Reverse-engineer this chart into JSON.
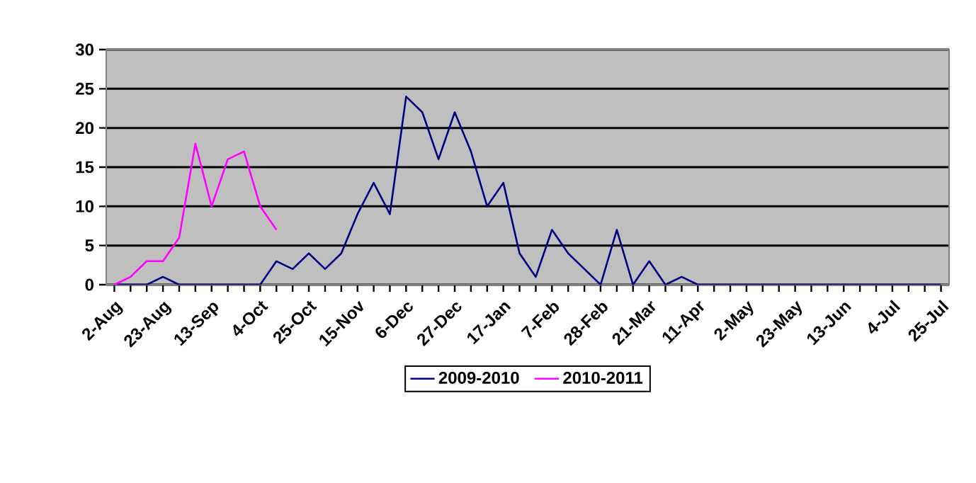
{
  "chart_data": {
    "type": "line",
    "categories": [
      "2-Aug",
      null,
      null,
      "23-Aug",
      null,
      null,
      "13-Sep",
      null,
      null,
      "4-Oct",
      null,
      null,
      "25-Oct",
      null,
      null,
      "15-Nov",
      null,
      null,
      "6-Dec",
      null,
      null,
      "27-Dec",
      null,
      null,
      "17-Jan",
      null,
      null,
      "7-Feb",
      null,
      null,
      "28-Feb",
      null,
      null,
      "21-Mar",
      null,
      null,
      "11-Apr",
      null,
      null,
      "2-May",
      null,
      null,
      "23-May",
      null,
      null,
      "13-Jun",
      null,
      null,
      "4-Jul",
      null,
      null,
      "25-Jul"
    ],
    "series": [
      {
        "name": "2009-2010",
        "color": "#000080",
        "values": [
          0,
          0,
          0,
          1,
          0,
          0,
          0,
          0,
          0,
          0,
          3,
          2,
          4,
          2,
          4,
          9,
          13,
          9,
          24,
          22,
          16,
          22,
          17,
          10,
          13,
          4,
          1,
          7,
          4,
          2,
          0,
          7,
          0,
          3,
          0,
          1,
          0,
          0,
          0,
          0,
          0,
          0,
          0,
          0,
          0,
          0,
          0,
          0,
          0,
          0,
          0,
          0
        ]
      },
      {
        "name": "2010-2011",
        "color": "#ff00ff",
        "values": [
          0,
          1,
          3,
          3,
          6,
          18,
          10,
          16,
          17,
          10,
          7,
          null,
          null,
          null,
          null,
          null,
          null,
          null,
          null,
          null,
          null,
          null,
          null,
          null,
          null,
          null,
          null,
          null,
          null,
          null,
          null,
          null,
          null,
          null,
          null,
          null,
          null,
          null,
          null,
          null,
          null,
          null,
          null,
          null,
          null,
          null,
          null,
          null,
          null,
          null,
          null,
          null
        ]
      }
    ],
    "ylim": [
      0,
      30
    ],
    "yticks": [
      0,
      5,
      10,
      15,
      20,
      25,
      30
    ],
    "grid": "y",
    "legend": "bottom"
  }
}
